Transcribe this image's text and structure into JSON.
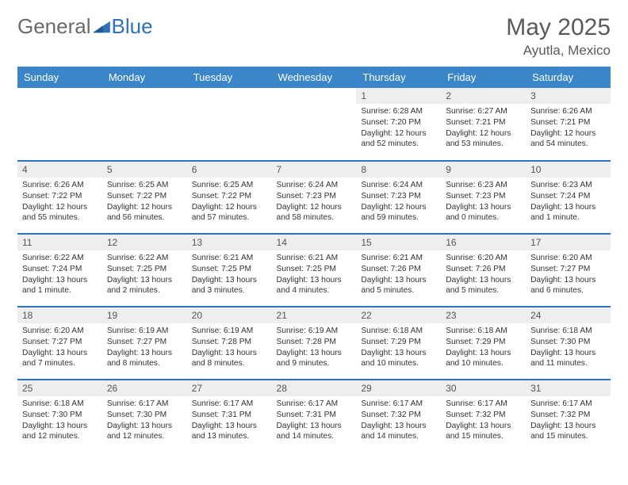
{
  "brand": {
    "part1": "General",
    "part2": "Blue"
  },
  "title": {
    "month": "May 2025",
    "location": "Ayutla, Mexico"
  },
  "colors": {
    "header_bg": "#3a86c8",
    "row_divider": "#2f72b6",
    "daynum_bg": "#eeeeee",
    "text": "#333333",
    "title_text": "#5a5a5a"
  },
  "days_of_week": [
    "Sunday",
    "Monday",
    "Tuesday",
    "Wednesday",
    "Thursday",
    "Friday",
    "Saturday"
  ],
  "weeks": [
    [
      null,
      null,
      null,
      null,
      {
        "n": "1",
        "sr": "6:28 AM",
        "ss": "7:20 PM",
        "dl": "12 hours and 52 minutes."
      },
      {
        "n": "2",
        "sr": "6:27 AM",
        "ss": "7:21 PM",
        "dl": "12 hours and 53 minutes."
      },
      {
        "n": "3",
        "sr": "6:26 AM",
        "ss": "7:21 PM",
        "dl": "12 hours and 54 minutes."
      }
    ],
    [
      {
        "n": "4",
        "sr": "6:26 AM",
        "ss": "7:22 PM",
        "dl": "12 hours and 55 minutes."
      },
      {
        "n": "5",
        "sr": "6:25 AM",
        "ss": "7:22 PM",
        "dl": "12 hours and 56 minutes."
      },
      {
        "n": "6",
        "sr": "6:25 AM",
        "ss": "7:22 PM",
        "dl": "12 hours and 57 minutes."
      },
      {
        "n": "7",
        "sr": "6:24 AM",
        "ss": "7:23 PM",
        "dl": "12 hours and 58 minutes."
      },
      {
        "n": "8",
        "sr": "6:24 AM",
        "ss": "7:23 PM",
        "dl": "12 hours and 59 minutes."
      },
      {
        "n": "9",
        "sr": "6:23 AM",
        "ss": "7:23 PM",
        "dl": "13 hours and 0 minutes."
      },
      {
        "n": "10",
        "sr": "6:23 AM",
        "ss": "7:24 PM",
        "dl": "13 hours and 1 minute."
      }
    ],
    [
      {
        "n": "11",
        "sr": "6:22 AM",
        "ss": "7:24 PM",
        "dl": "13 hours and 1 minute."
      },
      {
        "n": "12",
        "sr": "6:22 AM",
        "ss": "7:25 PM",
        "dl": "13 hours and 2 minutes."
      },
      {
        "n": "13",
        "sr": "6:21 AM",
        "ss": "7:25 PM",
        "dl": "13 hours and 3 minutes."
      },
      {
        "n": "14",
        "sr": "6:21 AM",
        "ss": "7:25 PM",
        "dl": "13 hours and 4 minutes."
      },
      {
        "n": "15",
        "sr": "6:21 AM",
        "ss": "7:26 PM",
        "dl": "13 hours and 5 minutes."
      },
      {
        "n": "16",
        "sr": "6:20 AM",
        "ss": "7:26 PM",
        "dl": "13 hours and 5 minutes."
      },
      {
        "n": "17",
        "sr": "6:20 AM",
        "ss": "7:27 PM",
        "dl": "13 hours and 6 minutes."
      }
    ],
    [
      {
        "n": "18",
        "sr": "6:20 AM",
        "ss": "7:27 PM",
        "dl": "13 hours and 7 minutes."
      },
      {
        "n": "19",
        "sr": "6:19 AM",
        "ss": "7:27 PM",
        "dl": "13 hours and 8 minutes."
      },
      {
        "n": "20",
        "sr": "6:19 AM",
        "ss": "7:28 PM",
        "dl": "13 hours and 8 minutes."
      },
      {
        "n": "21",
        "sr": "6:19 AM",
        "ss": "7:28 PM",
        "dl": "13 hours and 9 minutes."
      },
      {
        "n": "22",
        "sr": "6:18 AM",
        "ss": "7:29 PM",
        "dl": "13 hours and 10 minutes."
      },
      {
        "n": "23",
        "sr": "6:18 AM",
        "ss": "7:29 PM",
        "dl": "13 hours and 10 minutes."
      },
      {
        "n": "24",
        "sr": "6:18 AM",
        "ss": "7:30 PM",
        "dl": "13 hours and 11 minutes."
      }
    ],
    [
      {
        "n": "25",
        "sr": "6:18 AM",
        "ss": "7:30 PM",
        "dl": "13 hours and 12 minutes."
      },
      {
        "n": "26",
        "sr": "6:17 AM",
        "ss": "7:30 PM",
        "dl": "13 hours and 12 minutes."
      },
      {
        "n": "27",
        "sr": "6:17 AM",
        "ss": "7:31 PM",
        "dl": "13 hours and 13 minutes."
      },
      {
        "n": "28",
        "sr": "6:17 AM",
        "ss": "7:31 PM",
        "dl": "13 hours and 14 minutes."
      },
      {
        "n": "29",
        "sr": "6:17 AM",
        "ss": "7:32 PM",
        "dl": "13 hours and 14 minutes."
      },
      {
        "n": "30",
        "sr": "6:17 AM",
        "ss": "7:32 PM",
        "dl": "13 hours and 15 minutes."
      },
      {
        "n": "31",
        "sr": "6:17 AM",
        "ss": "7:32 PM",
        "dl": "13 hours and 15 minutes."
      }
    ]
  ],
  "labels": {
    "sunrise": "Sunrise:",
    "sunset": "Sunset:",
    "daylight": "Daylight:"
  }
}
